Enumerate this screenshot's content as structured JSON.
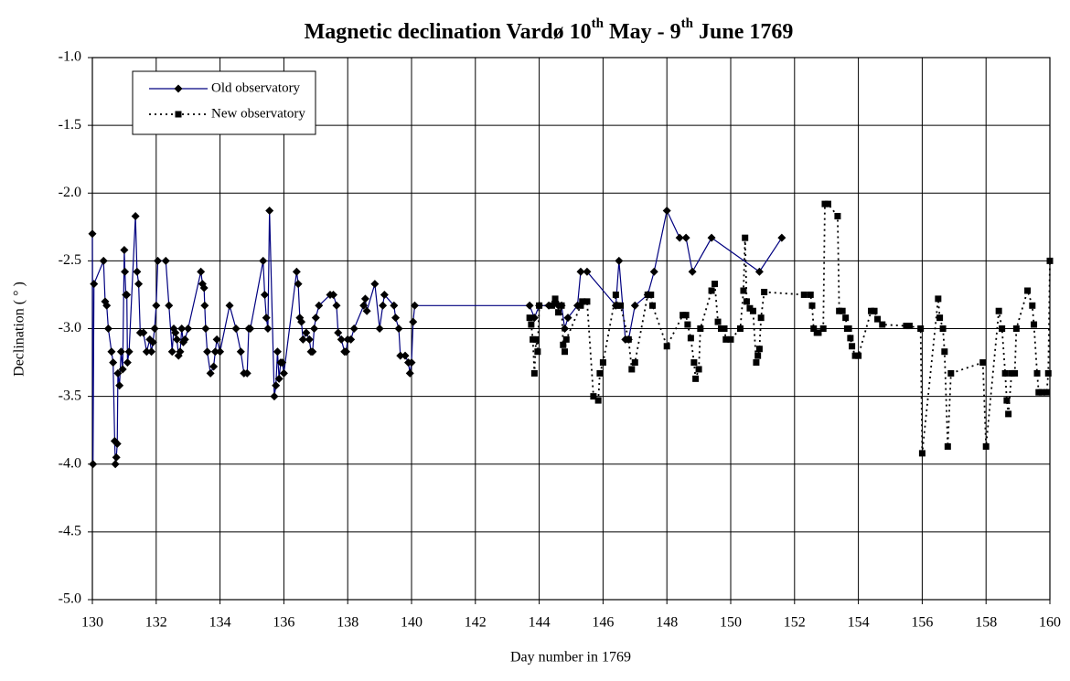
{
  "chart_data": {
    "type": "scatter",
    "title_parts": [
      "Magnetic declination Vardø 10",
      "th",
      " May - 9",
      "th",
      " June 1769"
    ],
    "xlabel": "Day number in 1769",
    "ylabel": "Declination ( ° )",
    "xlim": [
      130,
      160
    ],
    "xticks": [
      130,
      132,
      134,
      136,
      138,
      140,
      142,
      144,
      146,
      148,
      150,
      152,
      154,
      156,
      158,
      160
    ],
    "ylim": [
      -5,
      -1
    ],
    "yticks": [
      {
        "value": -1,
        "label": "-1.0"
      },
      -1.5,
      {
        "value": -2,
        "label": "-2.0"
      },
      -2.5,
      {
        "value": -3,
        "label": "-3.0"
      },
      -3.5,
      {
        "value": -4,
        "label": "-4.0"
      },
      -4.5,
      {
        "value": -5,
        "label": "-5.0"
      }
    ],
    "grid": true,
    "legend": "upper left",
    "series": [
      {
        "name": "Old observatory",
        "color": "#000080",
        "marker": "diamond",
        "linestyle": "solid",
        "x": [
          130.0,
          130.02,
          130.05,
          130.35,
          130.4,
          130.45,
          130.5,
          130.6,
          130.65,
          130.7,
          130.72,
          130.75,
          130.78,
          130.8,
          130.85,
          130.9,
          130.95,
          131.0,
          131.02,
          131.05,
          131.08,
          131.1,
          131.15,
          131.35,
          131.4,
          131.45,
          131.5,
          131.6,
          131.7,
          131.8,
          131.85,
          131.9,
          131.95,
          132.0,
          132.05,
          132.3,
          132.4,
          132.5,
          132.55,
          132.6,
          132.65,
          132.7,
          132.75,
          132.8,
          132.85,
          132.9,
          133.0,
          133.4,
          133.45,
          133.5,
          133.52,
          133.55,
          133.6,
          133.7,
          133.8,
          133.85,
          133.9,
          134.0,
          134.3,
          134.5,
          134.65,
          134.75,
          134.85,
          134.9,
          134.95,
          135.35,
          135.4,
          135.45,
          135.5,
          135.55,
          135.7,
          135.75,
          135.8,
          135.85,
          135.9,
          135.95,
          136.0,
          136.4,
          136.45,
          136.5,
          136.55,
          136.6,
          136.7,
          136.8,
          136.85,
          136.9,
          136.95,
          137.0,
          137.1,
          137.45,
          137.55,
          137.65,
          137.7,
          137.8,
          137.9,
          137.95,
          138.0,
          138.1,
          138.2,
          138.5,
          138.55,
          138.6,
          138.85,
          139.0,
          139.1,
          139.15,
          139.45,
          139.5,
          139.6,
          139.65,
          139.8,
          139.9,
          139.95,
          140.0,
          140.05,
          140.1,
          143.7,
          143.85,
          144.0,
          144.3,
          144.5,
          144.6,
          144.7,
          144.8,
          144.9,
          145.2,
          145.3,
          145.5,
          146.4,
          146.5,
          146.7,
          146.8,
          147.0,
          147.4,
          147.6,
          148.0,
          148.4,
          148.6,
          148.8,
          149.4,
          150.9,
          151.6
        ],
        "values": [
          -2.3,
          -4.0,
          -2.67,
          -2.5,
          -2.8,
          -2.83,
          -3.0,
          -3.17,
          -3.25,
          -3.83,
          -4.0,
          -3.95,
          -3.85,
          -3.33,
          -3.42,
          -3.17,
          -3.3,
          -2.42,
          -2.58,
          -2.75,
          -2.75,
          -3.25,
          -3.17,
          -2.17,
          -2.58,
          -2.67,
          -3.03,
          -3.03,
          -3.17,
          -3.08,
          -3.17,
          -3.1,
          -3.0,
          -2.83,
          -2.5,
          -2.5,
          -2.83,
          -3.17,
          -3.0,
          -3.03,
          -3.08,
          -3.2,
          -3.17,
          -3.0,
          -3.1,
          -3.08,
          -3.0,
          -2.58,
          -2.67,
          -2.7,
          -2.83,
          -3.0,
          -3.17,
          -3.33,
          -3.28,
          -3.17,
          -3.08,
          -3.17,
          -2.83,
          -3.0,
          -3.17,
          -3.33,
          -3.33,
          -3.0,
          -3.0,
          -2.5,
          -2.75,
          -2.92,
          -3.0,
          -2.13,
          -3.5,
          -3.42,
          -3.17,
          -3.37,
          -3.25,
          -3.25,
          -3.33,
          -2.58,
          -2.67,
          -2.92,
          -2.95,
          -3.08,
          -3.03,
          -3.08,
          -3.17,
          -3.17,
          -3.0,
          -2.92,
          -2.83,
          -2.75,
          -2.75,
          -2.83,
          -3.03,
          -3.08,
          -3.17,
          -3.17,
          -3.08,
          -3.08,
          -3.0,
          -2.83,
          -2.78,
          -2.87,
          -2.67,
          -3.0,
          -2.83,
          -2.75,
          -2.83,
          -2.92,
          -3.0,
          -3.2,
          -3.2,
          -3.25,
          -3.33,
          -3.25,
          -2.95,
          -2.83,
          -2.83,
          -2.92,
          -2.83,
          -2.83,
          -2.8,
          -2.83,
          -2.83,
          -3.0,
          -2.92,
          -2.83,
          -2.58,
          -2.58,
          -2.83,
          -2.5,
          -3.08,
          -3.08,
          -2.83,
          -2.75,
          -2.58,
          -2.13,
          -2.33,
          -2.33,
          -2.58,
          -2.33,
          -2.58,
          -2.33
        ]
      },
      {
        "name": "New observatory",
        "color": "#000000",
        "marker": "square",
        "linestyle": "dotted",
        "x": [
          143.7,
          143.75,
          143.8,
          143.85,
          143.9,
          143.95,
          144.0,
          144.4,
          144.5,
          144.6,
          144.7,
          144.75,
          144.8,
          144.85,
          145.3,
          145.35,
          145.5,
          145.7,
          145.85,
          145.9,
          146.0,
          146.4,
          146.45,
          146.55,
          146.8,
          146.9,
          147.0,
          147.4,
          147.5,
          147.55,
          148.0,
          148.5,
          148.6,
          148.65,
          148.75,
          148.85,
          148.9,
          149.0,
          149.05,
          149.4,
          149.5,
          149.6,
          149.7,
          149.8,
          149.85,
          150.0,
          150.3,
          150.4,
          150.45,
          150.5,
          150.6,
          150.7,
          150.8,
          150.85,
          150.9,
          150.95,
          151.05,
          152.3,
          152.5,
          152.55,
          152.6,
          152.7,
          152.75,
          152.9,
          152.95,
          153.05,
          153.35,
          153.4,
          153.5,
          153.6,
          153.65,
          153.7,
          153.75,
          153.8,
          153.9,
          154.0,
          154.4,
          154.5,
          154.6,
          154.75,
          155.5,
          155.6,
          155.95,
          156.0,
          156.5,
          156.55,
          156.65,
          156.7,
          156.8,
          156.9,
          157.9,
          158.0,
          158.4,
          158.5,
          158.6,
          158.65,
          158.7,
          158.8,
          158.9,
          158.95,
          159.3,
          159.45,
          159.5,
          159.6,
          159.65,
          159.75,
          159.9,
          159.95,
          160.0
        ],
        "values": [
          -2.92,
          -2.97,
          -3.08,
          -3.33,
          -3.08,
          -3.17,
          -2.83,
          -2.83,
          -2.78,
          -2.88,
          -2.83,
          -3.12,
          -3.17,
          -3.08,
          -2.83,
          -2.8,
          -2.8,
          -3.5,
          -3.53,
          -3.33,
          -3.25,
          -2.75,
          -2.83,
          -2.83,
          -3.08,
          -3.3,
          -3.25,
          -2.75,
          -2.75,
          -2.83,
          -3.13,
          -2.9,
          -2.9,
          -2.97,
          -3.07,
          -3.25,
          -3.37,
          -3.3,
          -3.0,
          -2.72,
          -2.67,
          -2.95,
          -3.0,
          -3.0,
          -3.08,
          -3.08,
          -3.0,
          -2.72,
          -2.33,
          -2.8,
          -2.85,
          -2.87,
          -3.25,
          -3.2,
          -3.15,
          -2.92,
          -2.73,
          -2.75,
          -2.75,
          -2.83,
          -3.0,
          -3.03,
          -3.03,
          -3.0,
          -2.08,
          -2.08,
          -2.17,
          -2.87,
          -2.87,
          -2.92,
          -3.0,
          -3.0,
          -3.07,
          -3.13,
          -3.2,
          -3.2,
          -2.87,
          -2.87,
          -2.93,
          -2.97,
          -2.98,
          -2.98,
          -3.0,
          -3.92,
          -2.78,
          -2.92,
          -3.0,
          -3.17,
          -3.87,
          -3.33,
          -3.25,
          -3.87,
          -2.87,
          -3.0,
          -3.33,
          -3.53,
          -3.63,
          -3.33,
          -3.33,
          -3.0,
          -2.72,
          -2.83,
          -2.97,
          -3.33,
          -3.47,
          -3.47,
          -3.47,
          -3.33,
          -2.5
        ]
      }
    ]
  }
}
